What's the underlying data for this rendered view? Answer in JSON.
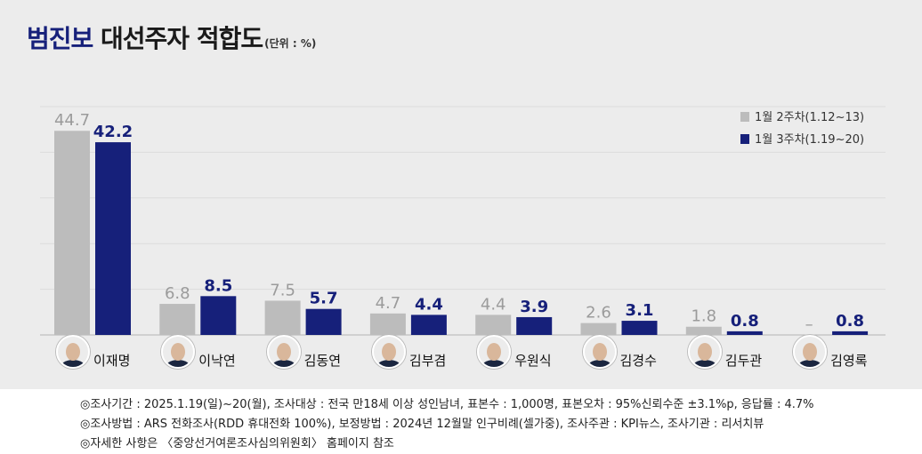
{
  "title": {
    "accent": "범진보",
    "main": "대선주자 적합도",
    "unit": "(단위 : %)"
  },
  "colors": {
    "panel": "#ececec",
    "week2": "#bcbcbc",
    "week3": "#16207a",
    "week2_label": "#9b9b9b",
    "week3_label": "#16207a"
  },
  "chart_data": {
    "type": "bar",
    "categories": [
      "이재명",
      "이낙연",
      "김동연",
      "김부겸",
      "우원식",
      "김경수",
      "김두관",
      "김영록"
    ],
    "series": [
      {
        "name": "1월 2주차(1.12~13)",
        "values": [
          44.7,
          6.8,
          7.5,
          4.7,
          4.4,
          2.6,
          1.8,
          null
        ],
        "labels": [
          "44.7",
          "6.8",
          "7.5",
          "4.7",
          "4.4",
          "2.6",
          "1.8",
          "–"
        ]
      },
      {
        "name": "1월 3주차(1.19~20)",
        "values": [
          42.2,
          8.5,
          5.7,
          4.4,
          3.9,
          3.1,
          0.8,
          0.8
        ],
        "labels": [
          "42.2",
          "8.5",
          "5.7",
          "4.4",
          "3.9",
          "3.1",
          "0.8",
          "0.8"
        ]
      }
    ],
    "ylim": [
      0,
      50
    ],
    "grid": true,
    "legend": "top-right"
  },
  "notes": [
    "◎조사기간 : 2025.1.19(일)~20(월), 조사대상 : 전국 만18세 이상 성인남녀, 표본수 : 1,000명, 표본오차 : 95%신뢰수준 ±3.1%p, 응답률 : 4.7%",
    "◎조사방법 : ARS 전화조사(RDD 휴대전화 100%), 보정방법 : 2024년 12월말 인구비례(셀가중), 조사주관 : KPI뉴스, 조사기관 : 리서치뷰",
    "◎자세한 사항은 〈중앙선거여론조사심의위원회〉 홈페이지 참조"
  ]
}
